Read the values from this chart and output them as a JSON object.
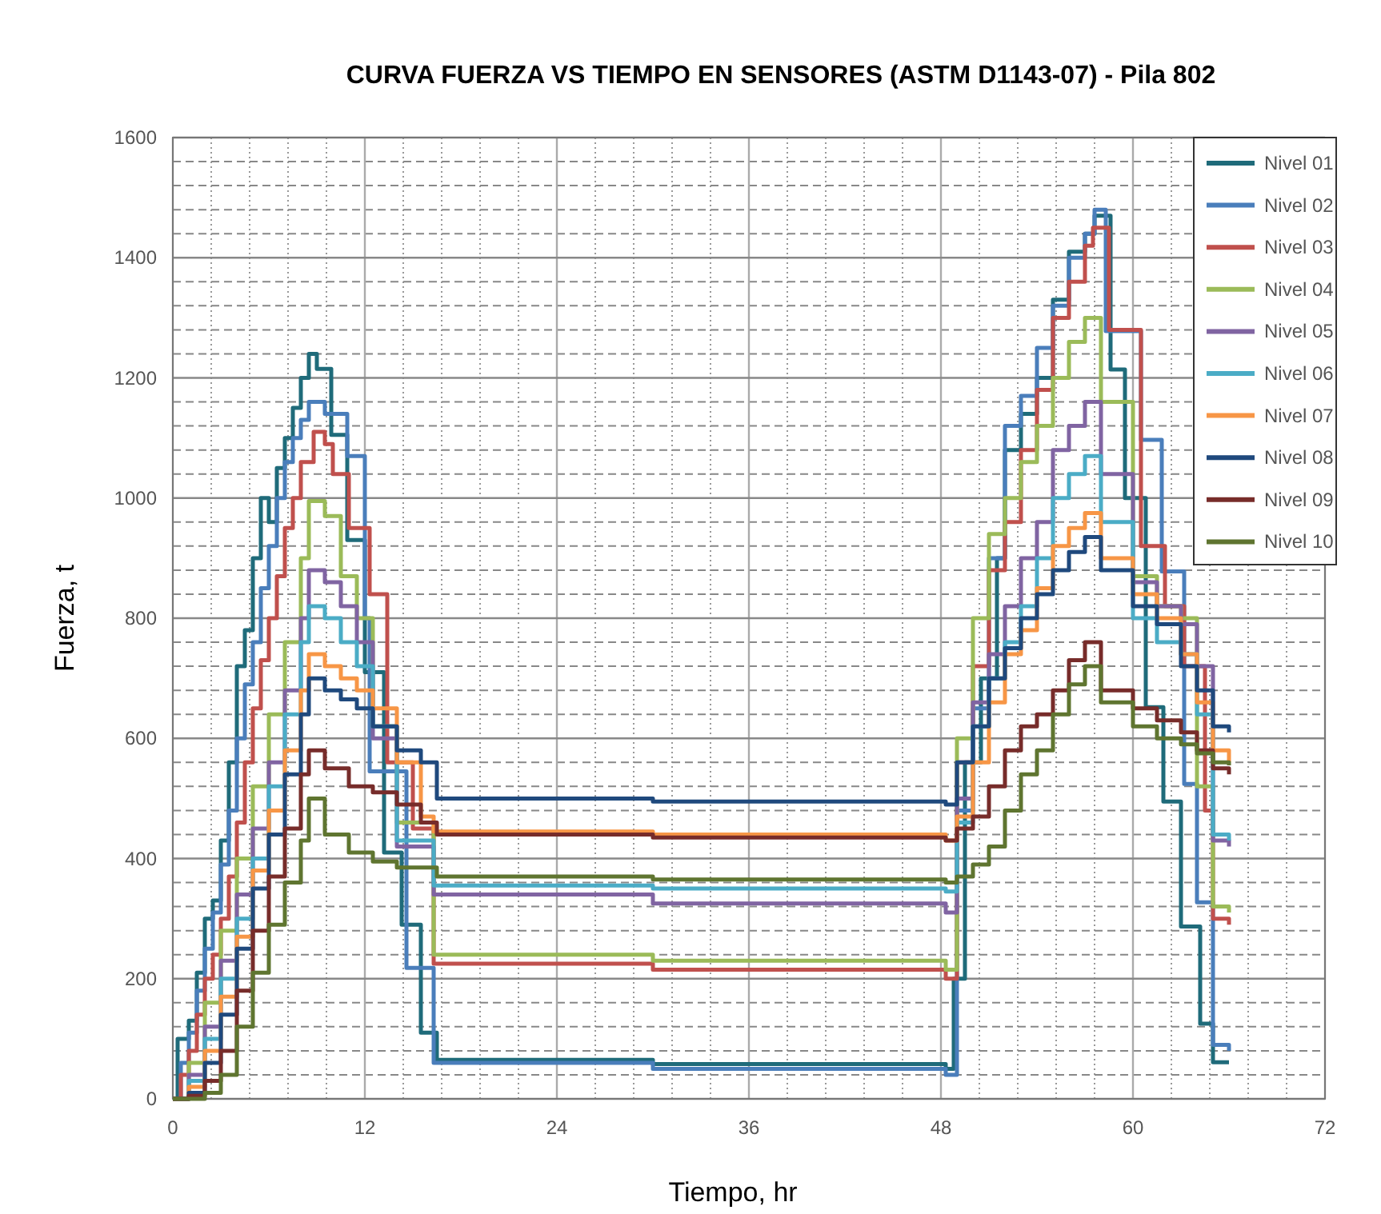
{
  "chart_data": {
    "type": "step",
    "title": "CURVA FUERZA VS TIEMPO EN SENSORES (ASTM D1143-07)  - Pila 802",
    "xlabel": "Tiempo, hr",
    "ylabel": "Fuerza, t",
    "xlim": [
      0,
      72
    ],
    "xticks": [
      0,
      12,
      24,
      36,
      48,
      60,
      72
    ],
    "ylim": [
      0,
      1600
    ],
    "yticks": [
      0,
      200,
      400,
      600,
      800,
      1000,
      1200,
      1400,
      1600
    ],
    "grid": true,
    "legend": "top right",
    "marker": "none",
    "line_style": "solid",
    "series": [
      {
        "name": "Nivel 01",
        "color": "#1f6b7a",
        "x": [
          0,
          0.3,
          1,
          1.5,
          2,
          2.5,
          3,
          3.5,
          4,
          4.5,
          5,
          5.5,
          6,
          6.5,
          7,
          7.5,
          8,
          8.5,
          9,
          9.9,
          10.9,
          12,
          13.2,
          14.3,
          15.5,
          16.5,
          30,
          48.3,
          48.8,
          49.5,
          50.5,
          51.5,
          52,
          53,
          54,
          55,
          56,
          57,
          57.6,
          58.6,
          59.5,
          60.8,
          61.9,
          63,
          64.2,
          65,
          66
        ],
        "values": [
          0,
          100,
          130,
          210,
          300,
          330,
          430,
          560,
          720,
          780,
          900,
          1000,
          960,
          1050,
          1100,
          1150,
          1200,
          1240,
          1215,
          1105,
          930,
          710,
          410,
          290,
          110,
          65,
          58,
          50,
          200,
          560,
          700,
          900,
          1080,
          1140,
          1200,
          1330,
          1410,
          1440,
          1470,
          1214,
          1000,
          652,
          495,
          287,
          125,
          61,
          61
        ]
      },
      {
        "name": "Nivel 02",
        "color": "#4a7ebb",
        "x": [
          0,
          0.5,
          1,
          1.5,
          2,
          2.5,
          3,
          3.5,
          4,
          4.5,
          5,
          5.5,
          6,
          6.5,
          7,
          7.5,
          8,
          8.5,
          9.5,
          10.9,
          12,
          12.3,
          14.6,
          16.3,
          30,
          48.3,
          49,
          50,
          51,
          52,
          53,
          54,
          55,
          56,
          57,
          57.6,
          58.3,
          60.5,
          61.8,
          63.2,
          64,
          65,
          66
        ],
        "values": [
          0,
          60,
          110,
          180,
          250,
          310,
          390,
          480,
          600,
          690,
          760,
          850,
          920,
          1000,
          1060,
          1100,
          1130,
          1160,
          1140,
          1070,
          800,
          545,
          218,
          60,
          50,
          40,
          480,
          650,
          900,
          1120,
          1170,
          1250,
          1320,
          1400,
          1440,
          1480,
          1278,
          1097,
          878,
          524,
          327,
          90,
          80
        ]
      },
      {
        "name": "Nivel 03",
        "color": "#c0504d",
        "x": [
          0,
          0.5,
          1,
          1.5,
          2,
          2.5,
          3,
          3.5,
          4,
          4.5,
          5,
          5.5,
          6,
          6.5,
          7,
          7.5,
          8,
          8.8,
          9.5,
          10,
          11,
          12.3,
          13.4,
          15,
          16.3,
          30,
          48.3,
          49,
          50,
          51,
          52,
          53,
          54,
          55,
          56,
          57,
          57.5,
          58.5,
          60.5,
          62,
          63.2,
          64.5,
          65,
          66
        ],
        "values": [
          0,
          40,
          80,
          140,
          200,
          240,
          300,
          370,
          460,
          560,
          650,
          730,
          800,
          870,
          950,
          1000,
          1060,
          1110,
          1090,
          1040,
          950,
          840,
          560,
          450,
          225,
          215,
          200,
          560,
          720,
          880,
          960,
          1080,
          1180,
          1300,
          1360,
          1420,
          1450,
          1280,
          920,
          820,
          720,
          480,
          300,
          290
        ]
      },
      {
        "name": "Nivel 04",
        "color": "#9bbb59",
        "x": [
          0,
          1,
          2,
          3,
          4,
          5,
          6,
          7,
          8,
          8.5,
          9.5,
          10.5,
          11.5,
          12.5,
          14,
          16.3,
          30,
          48.3,
          49,
          50,
          51,
          52,
          53,
          54,
          55,
          56,
          57,
          58,
          60,
          61.5,
          63,
          64,
          65,
          66
        ],
        "values": [
          0,
          60,
          160,
          280,
          400,
          520,
          640,
          760,
          900,
          995,
          970,
          870,
          800,
          620,
          460,
          240,
          230,
          215,
          600,
          800,
          940,
          1000,
          1060,
          1120,
          1200,
          1260,
          1300,
          1160,
          870,
          820,
          800,
          520,
          320,
          310
        ]
      },
      {
        "name": "Nivel 05",
        "color": "#8064a2",
        "x": [
          0,
          1,
          2,
          3,
          4,
          5,
          6,
          7,
          8,
          8.5,
          9.5,
          10.5,
          11.5,
          12.5,
          14,
          16.3,
          30,
          48.3,
          49,
          50,
          51,
          52,
          53,
          54,
          55,
          56,
          57,
          58,
          60,
          61.5,
          63,
          64,
          65,
          66
        ],
        "values": [
          0,
          40,
          120,
          230,
          340,
          450,
          560,
          680,
          800,
          880,
          860,
          820,
          760,
          600,
          420,
          340,
          325,
          310,
          500,
          660,
          740,
          820,
          900,
          960,
          1080,
          1120,
          1160,
          1040,
          860,
          820,
          790,
          720,
          430,
          420
        ]
      },
      {
        "name": "Nivel 06",
        "color": "#4bacc6",
        "x": [
          0,
          1,
          2,
          3,
          4,
          5,
          6,
          7,
          8,
          8.5,
          9.5,
          10.5,
          11.5,
          12.5,
          14,
          16.3,
          30,
          48.3,
          49,
          50,
          51,
          52,
          53,
          54,
          55,
          56,
          57,
          58,
          60,
          61.5,
          63,
          64,
          65,
          66
        ],
        "values": [
          0,
          30,
          100,
          200,
          300,
          400,
          520,
          640,
          760,
          820,
          800,
          760,
          720,
          620,
          430,
          355,
          350,
          345,
          460,
          620,
          700,
          760,
          820,
          900,
          1000,
          1040,
          1070,
          960,
          800,
          760,
          740,
          640,
          440,
          430
        ]
      },
      {
        "name": "Nivel 07",
        "color": "#f79646",
        "x": [
          0,
          1,
          2,
          3,
          4,
          5,
          6,
          7,
          8,
          8.5,
          9.5,
          10.5,
          11.5,
          12.5,
          14,
          15.5,
          16.3,
          30,
          48.3,
          49,
          50,
          51,
          52,
          53,
          54,
          55,
          56,
          57,
          58,
          60,
          61.5,
          63,
          64,
          65,
          66
        ],
        "values": [
          0,
          20,
          80,
          170,
          270,
          380,
          480,
          580,
          680,
          740,
          720,
          700,
          680,
          650,
          560,
          470,
          445,
          440,
          430,
          470,
          560,
          660,
          740,
          780,
          850,
          920,
          950,
          975,
          900,
          840,
          800,
          740,
          660,
          580,
          560
        ]
      },
      {
        "name": "Nivel 08",
        "color": "#1f497d",
        "x": [
          0,
          1,
          2,
          3,
          4,
          5,
          6,
          7,
          8,
          8.5,
          9.5,
          10.5,
          11.5,
          12.5,
          14,
          15.5,
          16.5,
          30,
          48.3,
          49,
          50,
          51,
          52,
          53,
          54,
          55,
          56,
          57,
          58,
          60,
          61.5,
          63,
          64,
          65,
          66
        ],
        "values": [
          0,
          10,
          60,
          140,
          250,
          350,
          440,
          540,
          640,
          700,
          680,
          665,
          650,
          620,
          580,
          560,
          500,
          495,
          490,
          560,
          620,
          700,
          750,
          800,
          840,
          880,
          910,
          935,
          880,
          820,
          790,
          720,
          680,
          620,
          610
        ]
      },
      {
        "name": "Nivel 09",
        "color": "#772c2a",
        "x": [
          0,
          1,
          2,
          3,
          4,
          5,
          6,
          7,
          8,
          8.5,
          9.5,
          11,
          12.5,
          14,
          15.5,
          16.5,
          30,
          48.3,
          49,
          50,
          51,
          52,
          53,
          54,
          55,
          56,
          57,
          58,
          60,
          61.5,
          63,
          64,
          65,
          66
        ],
        "values": [
          0,
          5,
          30,
          80,
          180,
          280,
          370,
          450,
          540,
          580,
          550,
          520,
          510,
          490,
          460,
          440,
          435,
          430,
          450,
          470,
          520,
          580,
          620,
          640,
          680,
          730,
          760,
          680,
          650,
          630,
          610,
          580,
          550,
          540
        ]
      },
      {
        "name": "Nivel 10",
        "color": "#5f7530",
        "x": [
          0,
          1,
          2,
          3,
          4,
          5,
          6,
          7,
          8,
          8.5,
          9.5,
          11,
          12.5,
          14,
          16.5,
          30,
          48.3,
          49,
          50,
          51,
          52,
          53,
          54,
          55,
          56,
          57,
          58,
          60,
          61.5,
          63,
          64,
          65,
          66
        ],
        "values": [
          0,
          0,
          10,
          40,
          120,
          210,
          290,
          360,
          430,
          500,
          440,
          410,
          395,
          385,
          370,
          365,
          360,
          370,
          390,
          420,
          480,
          540,
          580,
          640,
          690,
          720,
          660,
          620,
          600,
          590,
          575,
          560,
          555
        ]
      }
    ]
  }
}
